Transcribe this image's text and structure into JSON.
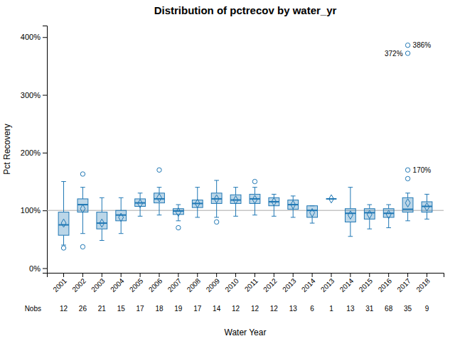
{
  "chart_data": {
    "type": "box",
    "title": "Distribution of pctrecov by water_yr",
    "xlabel": "Water Year",
    "ylabel": "Pct Recovery",
    "categories": [
      "2001",
      "2002",
      "2003",
      "2004",
      "2005",
      "2006",
      "2007",
      "2008",
      "2009",
      "2010",
      "2011",
      "2012",
      "2013",
      "2014",
      "2013",
      "2014",
      "2015",
      "2016",
      "2017",
      "2018"
    ],
    "nobs_label": "Nobs",
    "nobs": [
      12,
      26,
      21,
      15,
      17,
      18,
      19,
      17,
      14,
      12,
      12,
      12,
      13,
      6,
      1,
      13,
      31,
      68,
      35,
      9
    ],
    "boxes": [
      {
        "q1": 57,
        "med": 75,
        "q3": 97,
        "whislo": 40,
        "whishi": 150,
        "mean": 78,
        "fliers": [
          35
        ]
      },
      {
        "q1": 97,
        "med": 110,
        "q3": 120,
        "whislo": 60,
        "whishi": 140,
        "mean": 103,
        "fliers": [
          37,
          163
        ]
      },
      {
        "q1": 68,
        "med": 78,
        "q3": 97,
        "whislo": 48,
        "whishi": 122,
        "mean": 78,
        "fliers": []
      },
      {
        "q1": 82,
        "med": 92,
        "q3": 100,
        "whislo": 60,
        "whishi": 122,
        "mean": 88,
        "fliers": []
      },
      {
        "q1": 107,
        "med": 113,
        "q3": 120,
        "whislo": 90,
        "whishi": 130,
        "mean": 112,
        "fliers": []
      },
      {
        "q1": 113,
        "med": 120,
        "q3": 130,
        "whislo": 92,
        "whishi": 140,
        "mean": 122,
        "fliers": [
          170
        ]
      },
      {
        "q1": 93,
        "med": 99,
        "q3": 103,
        "whislo": 82,
        "whishi": 110,
        "mean": 97,
        "fliers": [
          70
        ]
      },
      {
        "q1": 105,
        "med": 112,
        "q3": 118,
        "whislo": 88,
        "whishi": 140,
        "mean": 112,
        "fliers": []
      },
      {
        "q1": 112,
        "med": 120,
        "q3": 130,
        "whislo": 88,
        "whishi": 152,
        "mean": 120,
        "fliers": [
          80
        ]
      },
      {
        "q1": 112,
        "med": 118,
        "q3": 127,
        "whislo": 90,
        "whishi": 140,
        "mean": 118,
        "fliers": []
      },
      {
        "q1": 112,
        "med": 120,
        "q3": 128,
        "whislo": 92,
        "whishi": 140,
        "mean": 119,
        "fliers": [
          150
        ]
      },
      {
        "q1": 108,
        "med": 115,
        "q3": 122,
        "whislo": 90,
        "whishi": 128,
        "mean": 115,
        "fliers": []
      },
      {
        "q1": 102,
        "med": 110,
        "q3": 118,
        "whislo": 88,
        "whishi": 125,
        "mean": 110,
        "fliers": []
      },
      {
        "q1": 88,
        "med": 100,
        "q3": 108,
        "whislo": 78,
        "whishi": 108,
        "mean": 96,
        "fliers": []
      },
      {
        "q1": 120,
        "med": 120,
        "q3": 120,
        "whislo": 120,
        "whishi": 120,
        "mean": 120,
        "fliers": []
      },
      {
        "q1": 80,
        "med": 95,
        "q3": 103,
        "whislo": 55,
        "whishi": 140,
        "mean": 92,
        "fliers": []
      },
      {
        "q1": 85,
        "med": 96,
        "q3": 103,
        "whislo": 68,
        "whishi": 110,
        "mean": 93,
        "fliers": []
      },
      {
        "q1": 88,
        "med": 95,
        "q3": 103,
        "whislo": 70,
        "whishi": 110,
        "mean": 93,
        "fliers": []
      },
      {
        "q1": 97,
        "med": 102,
        "q3": 122,
        "whislo": 82,
        "whishi": 130,
        "mean": 113,
        "fliers": [
          170,
          155,
          386,
          372
        ]
      },
      {
        "q1": 97,
        "med": 107,
        "q3": 115,
        "whislo": 85,
        "whishi": 128,
        "mean": 106,
        "fliers": []
      }
    ],
    "annotations": [
      {
        "x": "2017",
        "y": 386,
        "text": "386%"
      },
      {
        "x": "2017",
        "y": 372,
        "text": "372%"
      },
      {
        "x": "2017",
        "y": 170,
        "text": "170%"
      }
    ],
    "reference_line": 100,
    "ylim": [
      -8,
      420
    ],
    "yticks": [
      {
        "value": 0,
        "label": "0%"
      },
      {
        "value": 100,
        "label": "100%"
      },
      {
        "value": 200,
        "label": "200%"
      },
      {
        "value": 300,
        "label": "300%"
      },
      {
        "value": 400,
        "label": "400%"
      }
    ],
    "grid": false
  }
}
